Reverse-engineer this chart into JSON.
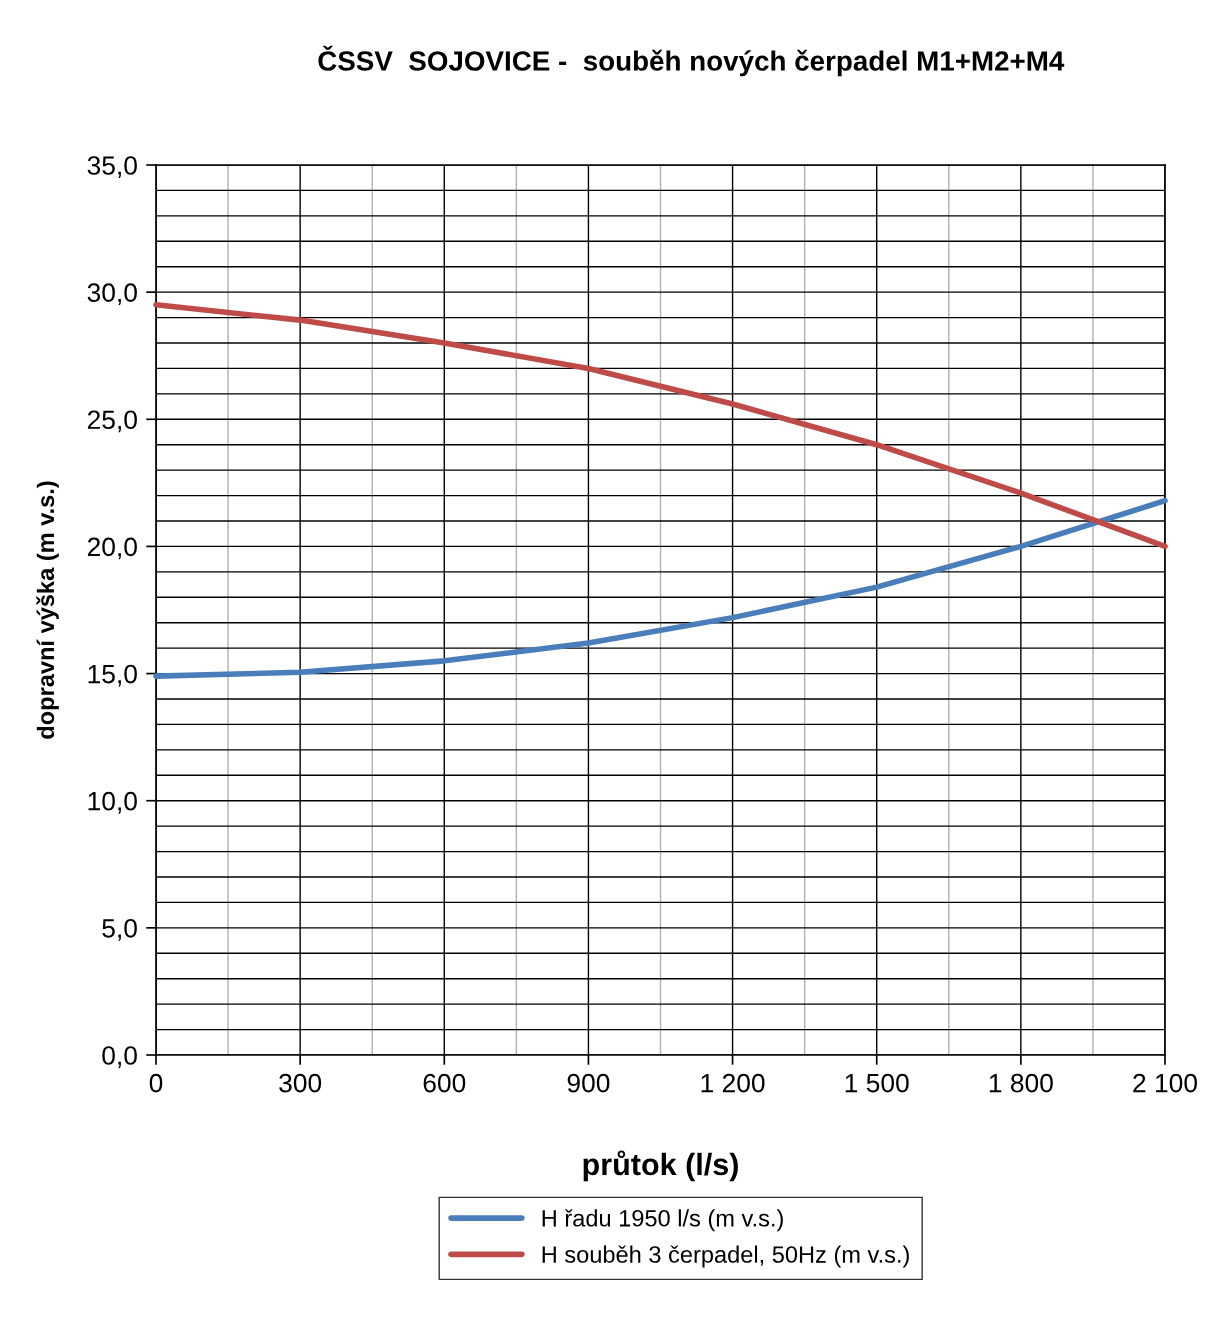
{
  "chart_data": {
    "type": "line",
    "title": "ČSSV  SOJOVICE -  souběh nových čerpadel M1+M2+M4",
    "xlabel": "průtok (l/s)",
    "ylabel": "dopravní výška (m v.s.)",
    "x": [
      0,
      300,
      600,
      900,
      1200,
      1500,
      1800,
      2100
    ],
    "series": [
      {
        "name": "H řadu 1950 l/s (m v.s.)",
        "color": "#4a7ebb",
        "values": [
          14.9,
          15.05,
          15.5,
          16.2,
          17.2,
          18.4,
          20.0,
          21.8
        ]
      },
      {
        "name": "H souběh 3 čerpadel, 50Hz (m v.s.)",
        "color": "#be4b48",
        "values": [
          29.5,
          28.9,
          28.0,
          27.0,
          25.6,
          24.0,
          22.1,
          20.0
        ]
      }
    ],
    "xlim": [
      0,
      2100
    ],
    "xticks": [
      {
        "value": 0,
        "label": "0"
      },
      {
        "value": 150,
        "label": null
      },
      {
        "value": 300,
        "label": "300"
      },
      {
        "value": 450,
        "label": null
      },
      {
        "value": 600,
        "label": "600"
      },
      {
        "value": 750,
        "label": null
      },
      {
        "value": 900,
        "label": "900"
      },
      {
        "value": 1050,
        "label": null
      },
      {
        "value": 1200,
        "label": "1 200"
      },
      {
        "value": 1350,
        "label": null
      },
      {
        "value": 1500,
        "label": "1 500"
      },
      {
        "value": 1650,
        "label": null
      },
      {
        "value": 1800,
        "label": "1 800"
      },
      {
        "value": 1950,
        "label": null
      },
      {
        "value": 2100,
        "label": "2 100"
      }
    ],
    "ylim": [
      0,
      35
    ],
    "yticks": [
      {
        "value": 0,
        "label": "0,0"
      },
      {
        "value": 1,
        "label": null
      },
      {
        "value": 2,
        "label": null
      },
      {
        "value": 3,
        "label": null
      },
      {
        "value": 4,
        "label": null
      },
      {
        "value": 5,
        "label": "5,0"
      },
      {
        "value": 6,
        "label": null
      },
      {
        "value": 7,
        "label": null
      },
      {
        "value": 8,
        "label": null
      },
      {
        "value": 9,
        "label": null
      },
      {
        "value": 10,
        "label": "10,0"
      },
      {
        "value": 11,
        "label": null
      },
      {
        "value": 12,
        "label": null
      },
      {
        "value": 13,
        "label": null
      },
      {
        "value": 14,
        "label": null
      },
      {
        "value": 15,
        "label": "15,0"
      },
      {
        "value": 16,
        "label": null
      },
      {
        "value": 17,
        "label": null
      },
      {
        "value": 18,
        "label": null
      },
      {
        "value": 19,
        "label": null
      },
      {
        "value": 20,
        "label": "20,0"
      },
      {
        "value": 21,
        "label": null
      },
      {
        "value": 22,
        "label": null
      },
      {
        "value": 23,
        "label": null
      },
      {
        "value": 24,
        "label": null
      },
      {
        "value": 25,
        "label": "25,0"
      },
      {
        "value": 26,
        "label": null
      },
      {
        "value": 27,
        "label": null
      },
      {
        "value": 28,
        "label": null
      },
      {
        "value": 29,
        "label": null
      },
      {
        "value": 30,
        "label": "30,0"
      },
      {
        "value": 31,
        "label": null
      },
      {
        "value": 32,
        "label": null
      },
      {
        "value": 33,
        "label": null
      },
      {
        "value": 34,
        "label": null
      },
      {
        "value": 35,
        "label": "35,0"
      }
    ],
    "grid": true,
    "legend": "bottom",
    "marker": "none",
    "line_style": "solid"
  }
}
